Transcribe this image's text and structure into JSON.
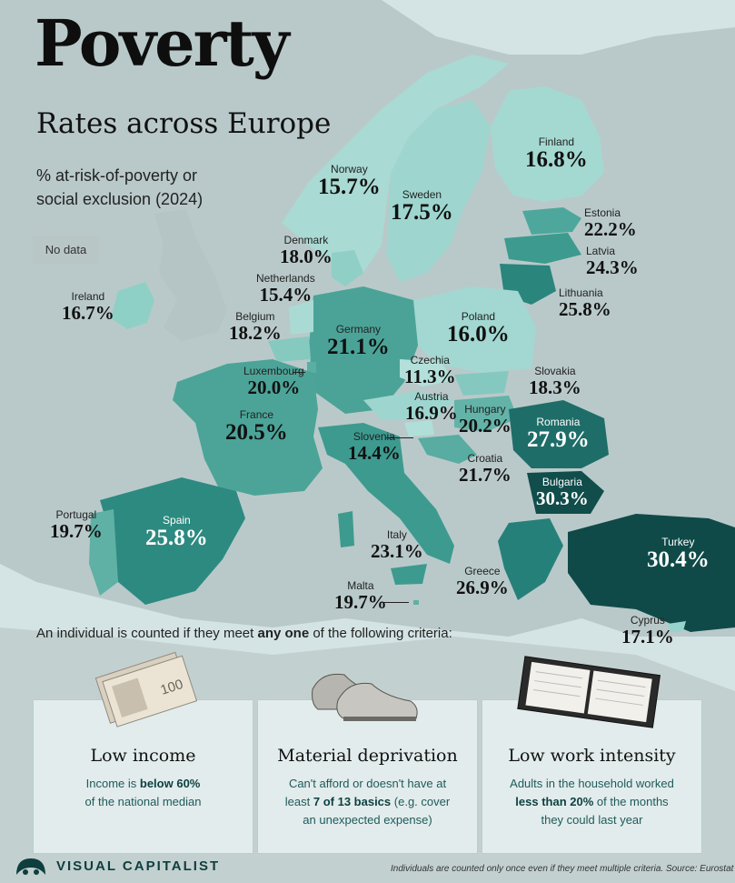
{
  "title": "Poverty",
  "subtitle": "Rates across Europe",
  "measure_line1": "% at-risk-of-poverty or",
  "measure_line2": "social exclusion (2024)",
  "no_data_label": "No data",
  "colors": {
    "scale_low": "#a7d8d3",
    "scale_mid": "#3b9c92",
    "scale_high": "#1e6d68",
    "scale_max": "#0f4a48",
    "no_data": "#b9c6c6",
    "background": "#d4e3e3"
  },
  "countries": {
    "finland": {
      "name": "Finland",
      "value": "16.8%"
    },
    "norway": {
      "name": "Norway",
      "value": "15.7%"
    },
    "sweden": {
      "name": "Sweden",
      "value": "17.5%"
    },
    "estonia": {
      "name": "Estonia",
      "value": "22.2%"
    },
    "latvia": {
      "name": "Latvia",
      "value": "24.3%"
    },
    "lithuania": {
      "name": "Lithuania",
      "value": "25.8%"
    },
    "denmark": {
      "name": "Denmark",
      "value": "18.0%"
    },
    "netherlands": {
      "name": "Netherlands",
      "value": "15.4%"
    },
    "ireland": {
      "name": "Ireland",
      "value": "16.7%"
    },
    "belgium": {
      "name": "Belgium",
      "value": "18.2%"
    },
    "germany": {
      "name": "Germany",
      "value": "21.1%"
    },
    "poland": {
      "name": "Poland",
      "value": "16.0%"
    },
    "czechia": {
      "name": "Czechia",
      "value": "11.3%"
    },
    "slovakia": {
      "name": "Slovakia",
      "value": "18.3%"
    },
    "luxembourg": {
      "name": "Luxembourg",
      "value": "20.0%"
    },
    "austria": {
      "name": "Austria",
      "value": "16.9%"
    },
    "hungary": {
      "name": "Hungary",
      "value": "20.2%"
    },
    "france": {
      "name": "France",
      "value": "20.5%"
    },
    "slovenia": {
      "name": "Slovenia",
      "value": "14.4%"
    },
    "romania": {
      "name": "Romania",
      "value": "27.9%"
    },
    "croatia": {
      "name": "Croatia",
      "value": "21.7%"
    },
    "bulgaria": {
      "name": "Bulgaria",
      "value": "30.3%"
    },
    "portugal": {
      "name": "Portugal",
      "value": "19.7%"
    },
    "spain": {
      "name": "Spain",
      "value": "25.8%"
    },
    "italy": {
      "name": "Italy",
      "value": "23.1%"
    },
    "turkey": {
      "name": "Turkey",
      "value": "30.4%"
    },
    "greece": {
      "name": "Greece",
      "value": "26.9%"
    },
    "malta": {
      "name": "Malta",
      "value": "19.7%"
    },
    "cyprus": {
      "name": "Cyprus",
      "value": "17.1%"
    }
  },
  "criteria_lead": {
    "before": "An individual is counted if they meet ",
    "emphasis": "any one",
    "after": " of the following criteria:"
  },
  "criteria": [
    {
      "title": "Low income",
      "l1a": "Income is ",
      "l1b": "below 60%",
      "l2": "of the national median",
      "icon": "banknotes-icon"
    },
    {
      "title": "Material deprivation",
      "l1": "Can't afford or doesn't have at",
      "l2a": "least ",
      "l2b": "7 of 13 basics",
      "l2c": " (e.g. cover",
      "l3": "an unexpected expense)",
      "icon": "shoes-icon"
    },
    {
      "title": "Low work intensity",
      "l1": "Adults in the household worked",
      "l2a": "less than 20%",
      "l2b": " of the months",
      "l3": "they could last year",
      "icon": "planner-icon"
    }
  ],
  "brand": "VISUAL CAPITALIST",
  "footnote": "Individuals are counted only once even if they meet multiple criteria. Source: Eurostat"
}
